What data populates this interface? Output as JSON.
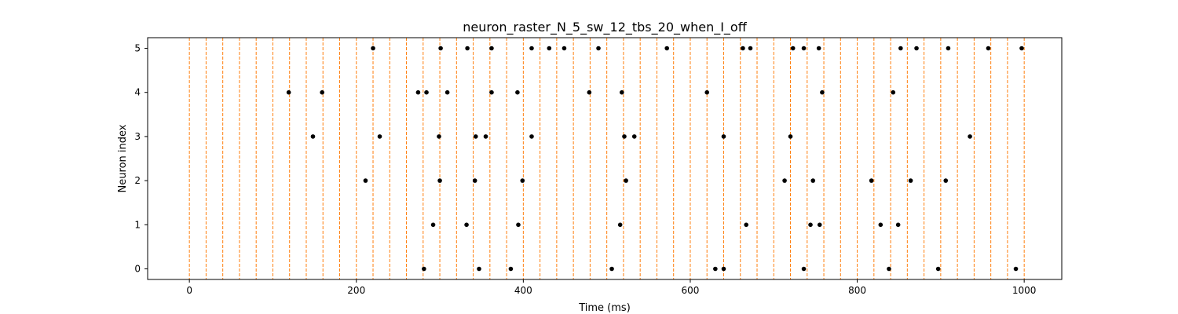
{
  "chart_data": {
    "type": "scatter",
    "title": "neuron_raster_N_5_sw_12_tbs_20_when_I_off",
    "xlabel": "Time (ms)",
    "ylabel": "Neuron index",
    "xlim": [
      -50,
      1045
    ],
    "ylim": [
      -0.24,
      5.24
    ],
    "xticks": [
      0,
      200,
      400,
      600,
      800,
      1000
    ],
    "yticks": [
      0,
      1,
      2,
      3,
      4,
      5
    ],
    "grid": false,
    "colors": {
      "spike": "#000000",
      "boundary": "#ff7f0e"
    },
    "boundaries": [
      0,
      20,
      40,
      60,
      80,
      100,
      120,
      140,
      160,
      180,
      200,
      220,
      240,
      260,
      280,
      300,
      320,
      340,
      360,
      380,
      400,
      420,
      440,
      460,
      480,
      500,
      520,
      540,
      560,
      580,
      600,
      620,
      640,
      660,
      680,
      700,
      720,
      740,
      760,
      780,
      800,
      820,
      840,
      860,
      880,
      900,
      920,
      940,
      960,
      980,
      1000
    ],
    "spikes": [
      {
        "neuron": 0,
        "times": [
          281,
          347,
          385,
          506,
          630,
          640,
          736,
          838,
          897,
          990
        ]
      },
      {
        "neuron": 1,
        "times": [
          292,
          332,
          394,
          516,
          667,
          744,
          755,
          828,
          849
        ]
      },
      {
        "neuron": 2,
        "times": [
          211,
          300,
          342,
          399,
          523,
          713,
          747,
          817,
          864,
          906
        ]
      },
      {
        "neuron": 3,
        "times": [
          148,
          228,
          299,
          343,
          355,
          410,
          521,
          533,
          640,
          720,
          935
        ]
      },
      {
        "neuron": 4,
        "times": [
          119,
          159,
          274,
          284,
          309,
          362,
          393,
          479,
          518,
          620,
          758,
          843
        ]
      },
      {
        "neuron": 5,
        "times": [
          220,
          301,
          333,
          362,
          410,
          431,
          449,
          490,
          572,
          663,
          672,
          723,
          736,
          754,
          852,
          871,
          909,
          957,
          997
        ]
      }
    ]
  }
}
